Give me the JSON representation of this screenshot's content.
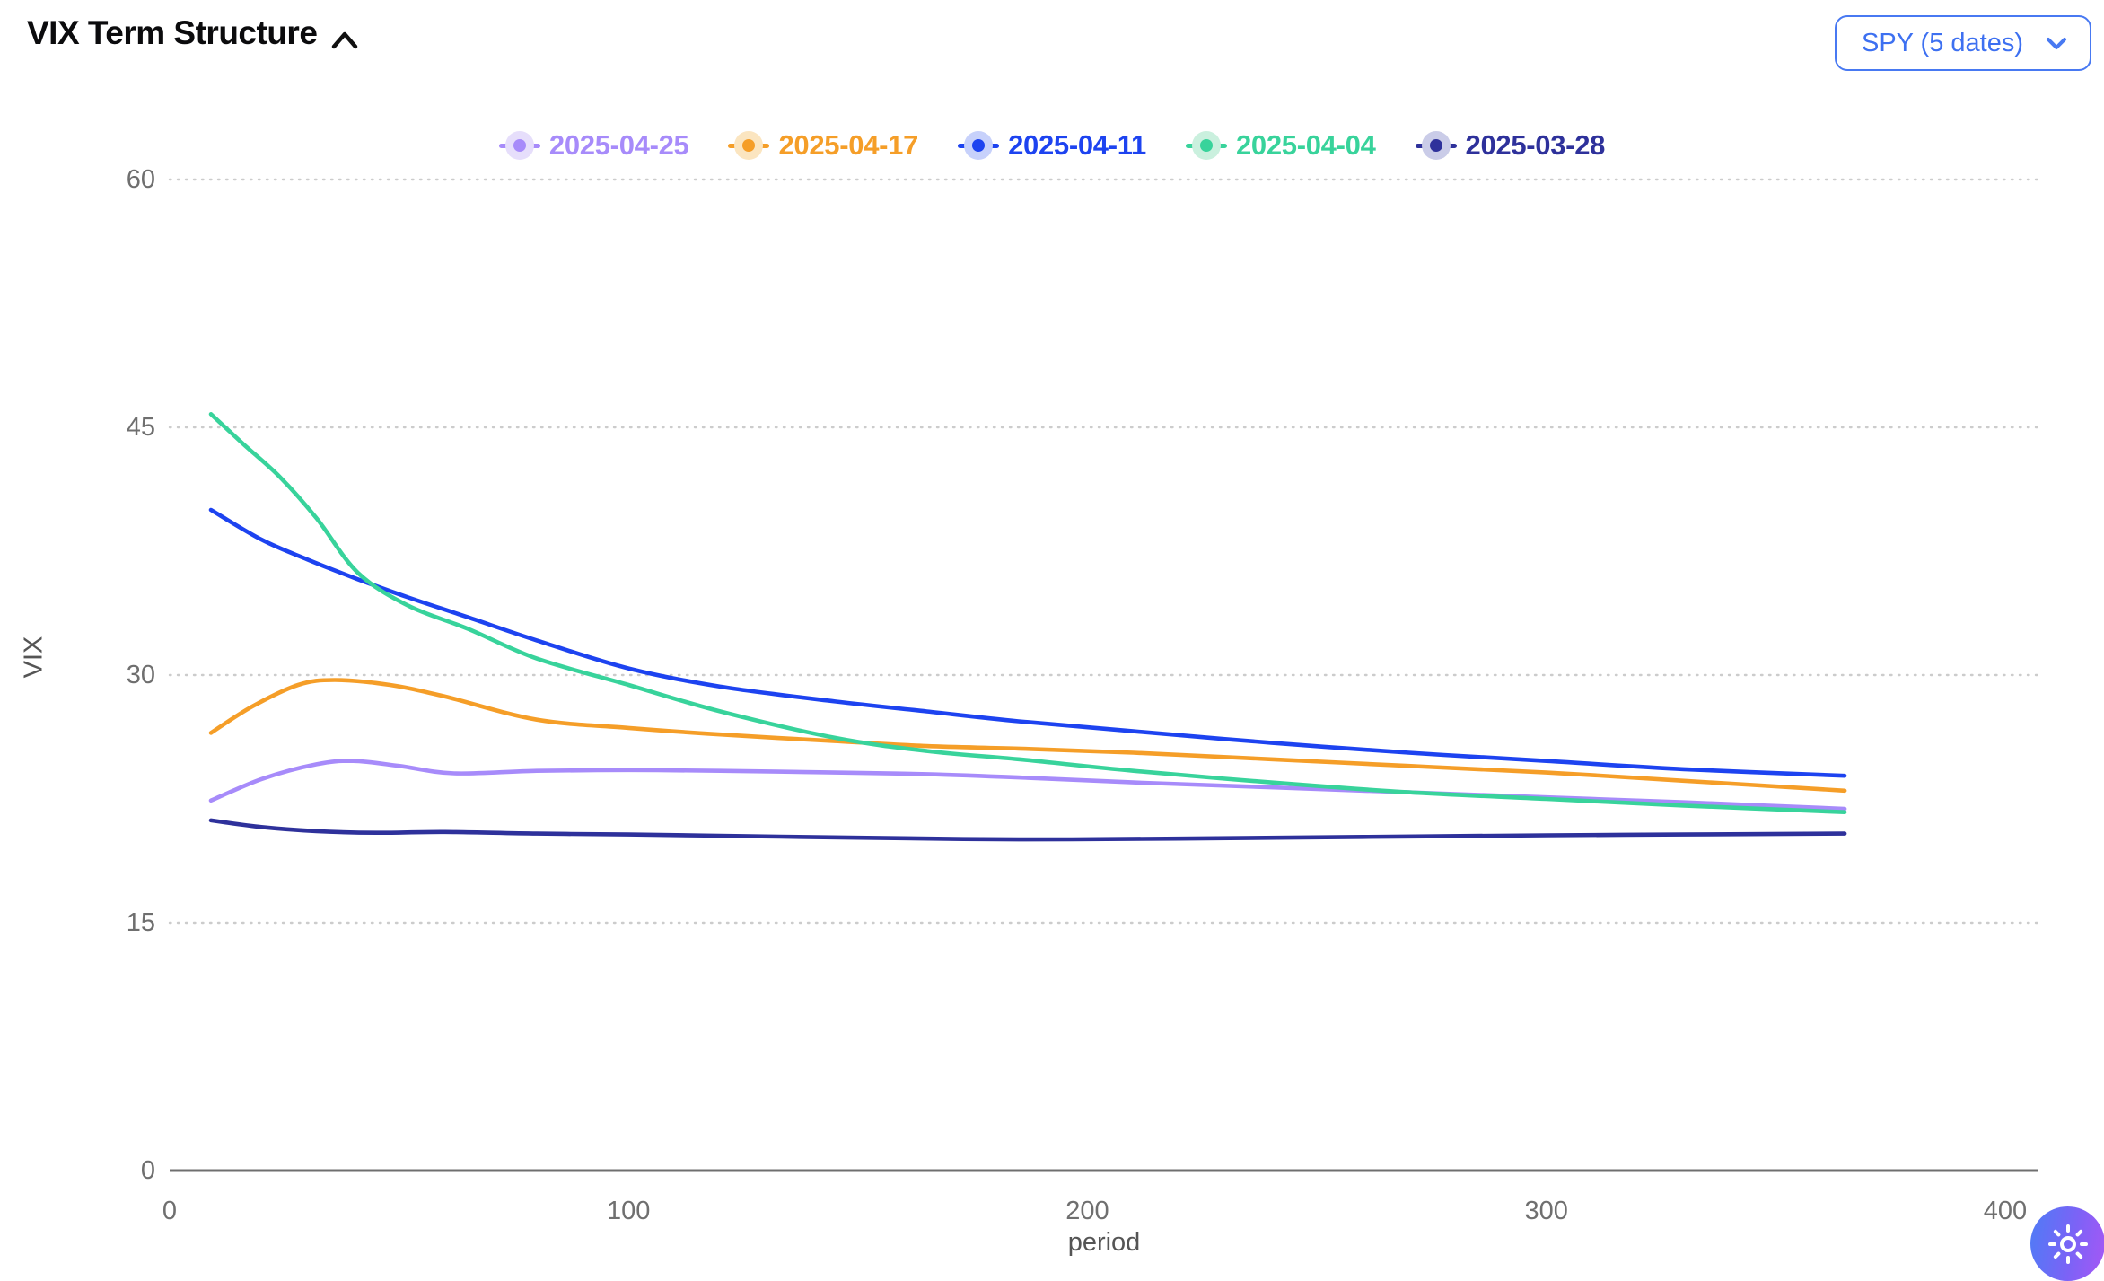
{
  "header": {
    "title": "VIX Term Structure"
  },
  "controls": {
    "symbol_selector": {
      "label": "SPY (5 dates)"
    }
  },
  "colors": {
    "accent_blue": "#4879f2",
    "axis_line": "#6f6f6f",
    "tick_text": "#6f6f6f",
    "grid_dots": "#cccccc",
    "axis_name_text": "#555555",
    "fab_gradient_start": "#4e7cf6",
    "fab_gradient_end": "#a757f5"
  },
  "chart_data": {
    "type": "line",
    "title": "VIX Term Structure",
    "xlabel": "period",
    "ylabel": "VIX",
    "xlim": [
      0,
      407
    ],
    "ylim": [
      0,
      60
    ],
    "xticks": [
      0,
      100,
      200,
      300,
      400
    ],
    "yticks": [
      0,
      15,
      30,
      45,
      60
    ],
    "grid": "horizontal dotted gridlines, solid x axis line",
    "legend_position": "top-center",
    "series": [
      {
        "name": "2025-04-25",
        "color": "#a78bfa",
        "halo": "#e6defb",
        "points": [
          [
            9,
            22.4
          ],
          [
            20,
            23.7
          ],
          [
            32,
            24.6
          ],
          [
            40,
            24.8
          ],
          [
            50,
            24.5
          ],
          [
            62,
            24.05
          ],
          [
            80,
            24.2
          ],
          [
            100,
            24.25
          ],
          [
            120,
            24.2
          ],
          [
            145,
            24.1
          ],
          [
            165,
            24.0
          ],
          [
            185,
            23.8
          ],
          [
            210,
            23.5
          ],
          [
            240,
            23.2
          ],
          [
            270,
            22.9
          ],
          [
            300,
            22.6
          ],
          [
            330,
            22.3
          ],
          [
            365,
            21.9
          ]
        ]
      },
      {
        "name": "2025-04-17",
        "color": "#f59e28",
        "halo": "#fbe5c0",
        "points": [
          [
            9,
            26.5
          ],
          [
            18,
            28.1
          ],
          [
            28,
            29.4
          ],
          [
            36,
            29.7
          ],
          [
            48,
            29.4
          ],
          [
            60,
            28.7
          ],
          [
            80,
            27.3
          ],
          [
            100,
            26.8
          ],
          [
            120,
            26.4
          ],
          [
            145,
            26.0
          ],
          [
            165,
            25.7
          ],
          [
            185,
            25.55
          ],
          [
            210,
            25.3
          ],
          [
            240,
            24.9
          ],
          [
            270,
            24.5
          ],
          [
            300,
            24.1
          ],
          [
            330,
            23.6
          ],
          [
            365,
            23.0
          ]
        ]
      },
      {
        "name": "2025-04-11",
        "color": "#1d43f0",
        "halo": "#c7d1fb",
        "points": [
          [
            9,
            40.0
          ],
          [
            20,
            38.2
          ],
          [
            30,
            37.0
          ],
          [
            41,
            35.8
          ],
          [
            52,
            34.7
          ],
          [
            65,
            33.5
          ],
          [
            80,
            32.1
          ],
          [
            100,
            30.4
          ],
          [
            120,
            29.3
          ],
          [
            145,
            28.4
          ],
          [
            165,
            27.8
          ],
          [
            185,
            27.2
          ],
          [
            210,
            26.6
          ],
          [
            240,
            25.9
          ],
          [
            270,
            25.3
          ],
          [
            300,
            24.8
          ],
          [
            330,
            24.3
          ],
          [
            365,
            23.9
          ]
        ]
      },
      {
        "name": "2025-04-04",
        "color": "#38d39b",
        "halo": "#caf0de",
        "points": [
          [
            9,
            45.8
          ],
          [
            16,
            44.0
          ],
          [
            24,
            42.0
          ],
          [
            32,
            39.5
          ],
          [
            41,
            36.2
          ],
          [
            52,
            34.2
          ],
          [
            65,
            32.8
          ],
          [
            80,
            31.0
          ],
          [
            100,
            29.4
          ],
          [
            120,
            27.8
          ],
          [
            145,
            26.2
          ],
          [
            165,
            25.4
          ],
          [
            185,
            24.9
          ],
          [
            210,
            24.2
          ],
          [
            240,
            23.5
          ],
          [
            270,
            22.9
          ],
          [
            300,
            22.5
          ],
          [
            330,
            22.1
          ],
          [
            365,
            21.7
          ]
        ]
      },
      {
        "name": "2025-03-28",
        "color": "#2e319b",
        "halo": "#caccE8",
        "points": [
          [
            9,
            21.2
          ],
          [
            20,
            20.8
          ],
          [
            32,
            20.55
          ],
          [
            45,
            20.45
          ],
          [
            60,
            20.5
          ],
          [
            80,
            20.4
          ],
          [
            100,
            20.35
          ],
          [
            125,
            20.25
          ],
          [
            150,
            20.15
          ],
          [
            185,
            20.05
          ],
          [
            220,
            20.1
          ],
          [
            260,
            20.2
          ],
          [
            300,
            20.3
          ],
          [
            330,
            20.35
          ],
          [
            365,
            20.4
          ]
        ]
      }
    ]
  }
}
